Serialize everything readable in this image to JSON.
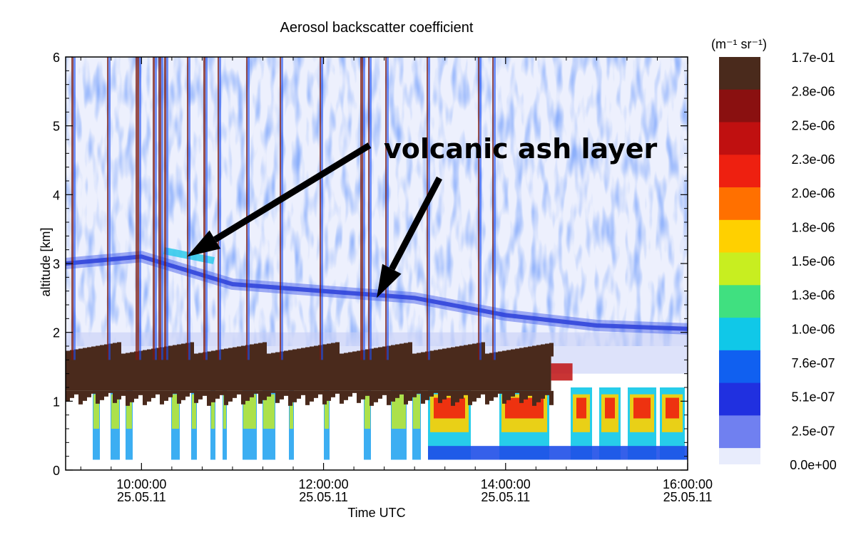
{
  "chart_data": {
    "type": "heatmap",
    "title": "Aerosol backscatter coefficient",
    "xlabel": "Time UTC",
    "ylabel": "altitude [km]",
    "xlim": [
      "09:10:00",
      "16:00:00"
    ],
    "ylim": [
      0,
      6
    ],
    "x_ticks": [
      {
        "time": "10:00:00",
        "date": "25.05.11"
      },
      {
        "time": "12:00:00",
        "date": "25.05.11"
      },
      {
        "time": "14:00:00",
        "date": "25.05.11"
      },
      {
        "time": "16:00:00",
        "date": "25.05.11"
      }
    ],
    "y_ticks": [
      "0",
      "1",
      "2",
      "3",
      "4",
      "5",
      "6"
    ],
    "colorbar": {
      "unit_label": "(m⁻¹ sr⁻¹)",
      "labels": [
        "1.7e-01",
        "2.8e-06",
        "2.5e-06",
        "2.3e-06",
        "2.0e-06",
        "1.8e-06",
        "1.5e-06",
        "1.3e-06",
        "1.0e-06",
        "7.6e-07",
        "5.1e-07",
        "2.5e-07",
        "0.0e+00"
      ],
      "colors": [
        "#4a2a1c",
        "#8a1010",
        "#c01010",
        "#ee2010",
        "#ff7000",
        "#ffd000",
        "#c8ee20",
        "#40e080",
        "#10c8e8",
        "#1060f0",
        "#2030e0",
        "#7080f0",
        "#e8ecfc"
      ]
    },
    "annotations": {
      "text": "volcanic ash layer",
      "arrow_targets": [
        {
          "time": "10:30:00",
          "altitude_km": 3.1
        },
        {
          "time": "12:35:00",
          "altitude_km": 2.5
        }
      ]
    },
    "features": {
      "ash_layer": [
        {
          "time": "09:10:00",
          "altitude_km": 3.0
        },
        {
          "time": "10:00:00",
          "altitude_km": 3.1
        },
        {
          "time": "11:00:00",
          "altitude_km": 2.7
        },
        {
          "time": "12:00:00",
          "altitude_km": 2.6
        },
        {
          "time": "13:00:00",
          "altitude_km": 2.5
        },
        {
          "time": "14:00:00",
          "altitude_km": 2.25
        },
        {
          "time": "15:00:00",
          "altitude_km": 2.1
        }
      ],
      "cloud_base_layer": {
        "bottom_km": 1.15,
        "top_km": 1.65,
        "start": "09:10:00",
        "end": "14:30:00"
      }
    }
  }
}
